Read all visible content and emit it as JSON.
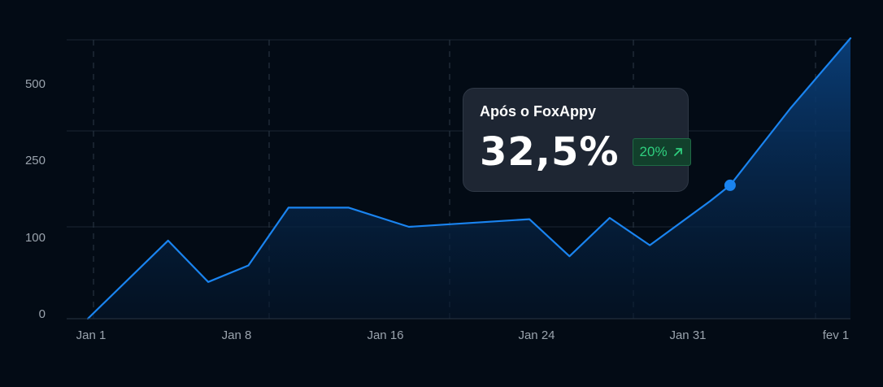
{
  "chart_data": {
    "type": "area",
    "x_labels": [
      "Jan 1",
      "Jan 8",
      "Jan 16",
      "Jan 24",
      "Jan 31",
      "fev 1"
    ],
    "y_ticks": [
      0,
      100,
      250,
      500
    ],
    "series": [
      {
        "points": [
          {
            "day": 1,
            "value": 0
          },
          {
            "day": 5,
            "value": 85
          },
          {
            "day": 7,
            "value": 40
          },
          {
            "day": 9,
            "value": 58
          },
          {
            "day": 11,
            "value": 130
          },
          {
            "day": 14,
            "value": 130
          },
          {
            "day": 17,
            "value": 100
          },
          {
            "day": 23,
            "value": 112
          },
          {
            "day": 25,
            "value": 68
          },
          {
            "day": 27,
            "value": 114
          },
          {
            "day": 29,
            "value": 80
          },
          {
            "day": 32,
            "value": 140
          },
          {
            "day": 33,
            "value": 165
          },
          {
            "day": 36,
            "value": 330
          },
          {
            "day": 39,
            "value": 610
          }
        ]
      }
    ],
    "highlight": {
      "day": 33,
      "value": 165
    },
    "grid": true,
    "line_color": "#1a84f0"
  },
  "tooltip": {
    "title": "Após o FoxAppy",
    "value": "32,5%",
    "badge": "20%",
    "badge_icon": "arrow-up-right-icon"
  }
}
